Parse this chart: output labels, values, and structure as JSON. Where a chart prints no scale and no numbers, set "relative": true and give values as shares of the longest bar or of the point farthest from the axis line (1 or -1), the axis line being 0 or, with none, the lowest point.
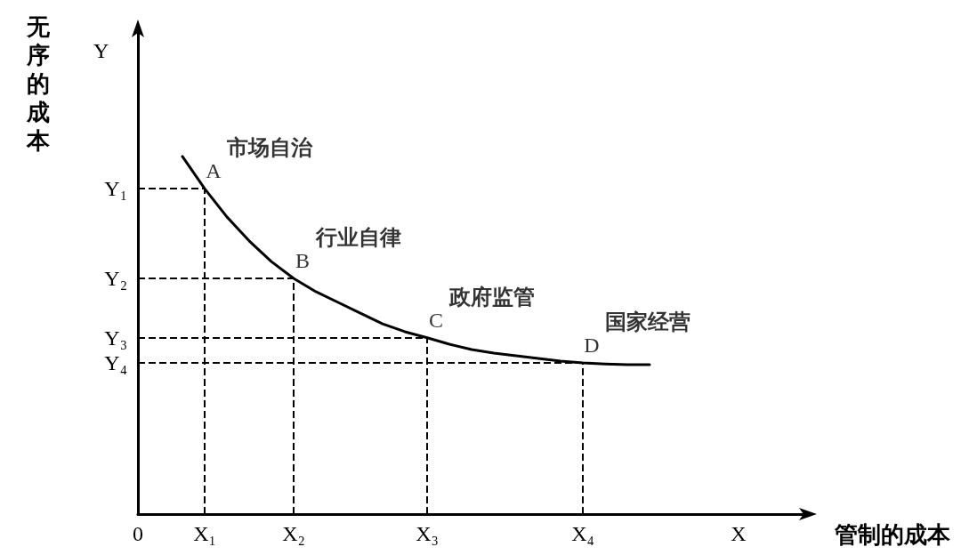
{
  "chart_data": {
    "type": "line",
    "relative": true,
    "ylabel": "无序的成本",
    "xlabel": "管制的成本",
    "categories": [
      "0",
      null,
      null,
      "X₁",
      null,
      null,
      null,
      "X₂",
      null,
      null,
      null,
      null,
      null,
      "X₃",
      null,
      null,
      null,
      null,
      null,
      null,
      "X₄",
      null,
      null,
      null,
      null,
      null,
      null,
      "X",
      null,
      null,
      null
    ],
    "series": [
      {
        "color": "#000000",
        "values": [
          null,
          null,
          1,
          0.91,
          0.831,
          0.764,
          0.706,
          0.659,
          0.622,
          0.592,
          0.562,
          0.532,
          0.51,
          0.493,
          0.475,
          0.46,
          0.45,
          0.443,
          0.435,
          0.428,
          0.423,
          0.42,
          0.418,
          0.418,
          null,
          null,
          null,
          null,
          null,
          null,
          null
        ]
      }
    ],
    "marker": "none",
    "line_style": "solid",
    "grid": false,
    "ref_lines": [
      {
        "axis": "x",
        "value": "X₁",
        "line_style": "dashed",
        "color": "#000000"
      },
      {
        "axis": "x",
        "value": "X₂",
        "line_style": "dashed",
        "color": "#000000"
      },
      {
        "axis": "x",
        "value": "X₃",
        "line_style": "dashed",
        "color": "#000000"
      },
      {
        "axis": "x",
        "value": "X₄",
        "line_style": "dashed",
        "color": "#000000"
      },
      {
        "axis": "y",
        "value": 0.91,
        "label": "Y₁",
        "line_style": "dashed",
        "color": "#000000"
      },
      {
        "axis": "y",
        "value": 0.659,
        "label": "Y₂",
        "line_style": "dashed",
        "color": "#000000"
      },
      {
        "axis": "y",
        "value": 0.493,
        "label": "Y₃",
        "line_style": "dashed",
        "color": "#000000"
      },
      {
        "axis": "y",
        "value": 0.423,
        "label": "Y₄",
        "line_style": "dashed",
        "color": "#000000"
      }
    ],
    "annotations": [
      "Y",
      {
        "text": "A",
        "x": "X₁",
        "y": 0.91
      },
      {
        "text": "市场自治",
        "x": "X₁",
        "y": 0.91
      },
      {
        "text": "B",
        "x": "X₂",
        "y": 0.659
      },
      {
        "text": "行业自律",
        "x": "X₂",
        "y": 0.659
      },
      {
        "text": "C",
        "x": "X₃",
        "y": 0.493
      },
      {
        "text": "政府监管",
        "x": "X₃",
        "y": 0.493
      },
      {
        "text": "D",
        "x": "X₄",
        "y": 0.423
      },
      {
        "text": "国家经营",
        "x": "X₄",
        "y": 0.423
      }
    ]
  }
}
